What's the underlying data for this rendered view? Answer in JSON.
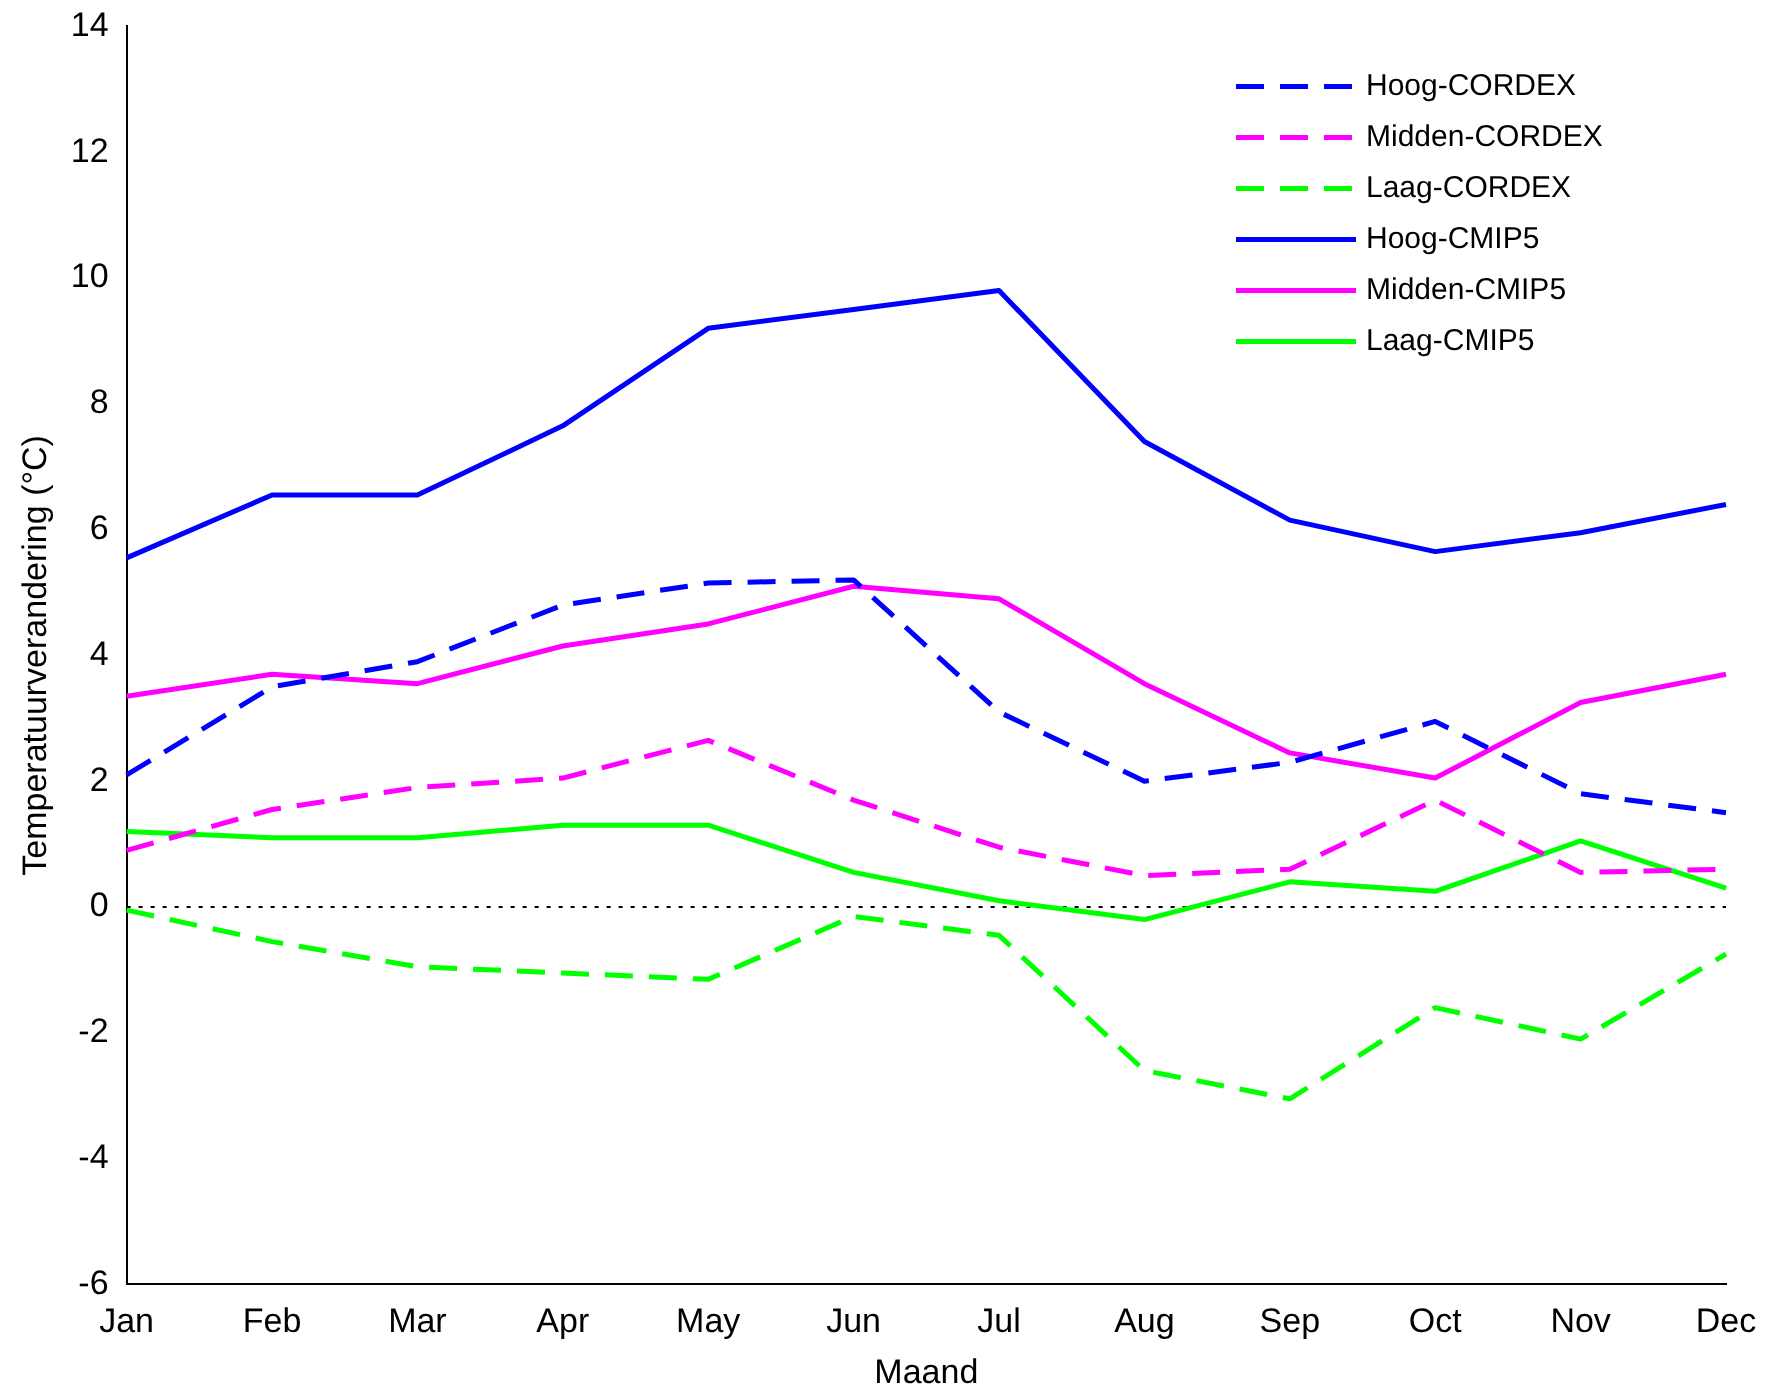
{
  "chart_data": {
    "type": "line",
    "xlabel": "Maand",
    "ylabel": "Temperatuurverandering (°C)",
    "categories": [
      "Jan",
      "Feb",
      "Mar",
      "Apr",
      "May",
      "Jun",
      "Jul",
      "Aug",
      "Sep",
      "Oct",
      "Nov",
      "Dec"
    ],
    "ylim": [
      -6,
      14
    ],
    "yticks": [
      -6,
      -4,
      -2,
      0,
      2,
      4,
      6,
      8,
      10,
      12,
      14
    ],
    "grid": false,
    "legend": "top right",
    "marker": "none",
    "ref_lines": [
      {
        "axis": "y",
        "value": 0,
        "color": "#000000",
        "line_style": "dotted"
      }
    ],
    "series": [
      {
        "name": "Hoog-CORDEX",
        "color": "#0000ff",
        "line_style": "dashed",
        "values": [
          2.1,
          3.5,
          3.9,
          4.8,
          5.15,
          5.2,
          3.1,
          2.0,
          2.3,
          2.95,
          1.8,
          1.5
        ]
      },
      {
        "name": "Midden-CORDEX",
        "color": "#ff00ff",
        "line_style": "dashed",
        "values": [
          0.9,
          1.55,
          1.9,
          2.05,
          2.65,
          1.7,
          0.95,
          0.5,
          0.6,
          1.7,
          0.55,
          0.6
        ]
      },
      {
        "name": "Laag-CORDEX",
        "color": "#00ff00",
        "line_style": "dashed",
        "values": [
          -0.05,
          -0.55,
          -0.95,
          -1.05,
          -1.15,
          -0.15,
          -0.45,
          -2.6,
          -3.05,
          -1.6,
          -2.1,
          -0.75
        ]
      },
      {
        "name": "Hoog-CMIP5",
        "color": "#0000ff",
        "line_style": "solid",
        "values": [
          5.55,
          6.55,
          6.55,
          7.65,
          9.2,
          9.5,
          9.8,
          7.4,
          6.15,
          5.65,
          5.95,
          6.4
        ]
      },
      {
        "name": "Midden-CMIP5",
        "color": "#ff00ff",
        "line_style": "solid",
        "values": [
          3.35,
          3.7,
          3.55,
          4.15,
          4.5,
          5.1,
          4.9,
          3.55,
          2.45,
          2.05,
          3.25,
          3.7
        ]
      },
      {
        "name": "Laag-CMIP5",
        "color": "#00ff00",
        "line_style": "solid",
        "values": [
          1.2,
          1.1,
          1.1,
          1.3,
          1.3,
          0.55,
          0.1,
          -0.2,
          0.4,
          0.25,
          1.05,
          0.3
        ]
      }
    ]
  }
}
